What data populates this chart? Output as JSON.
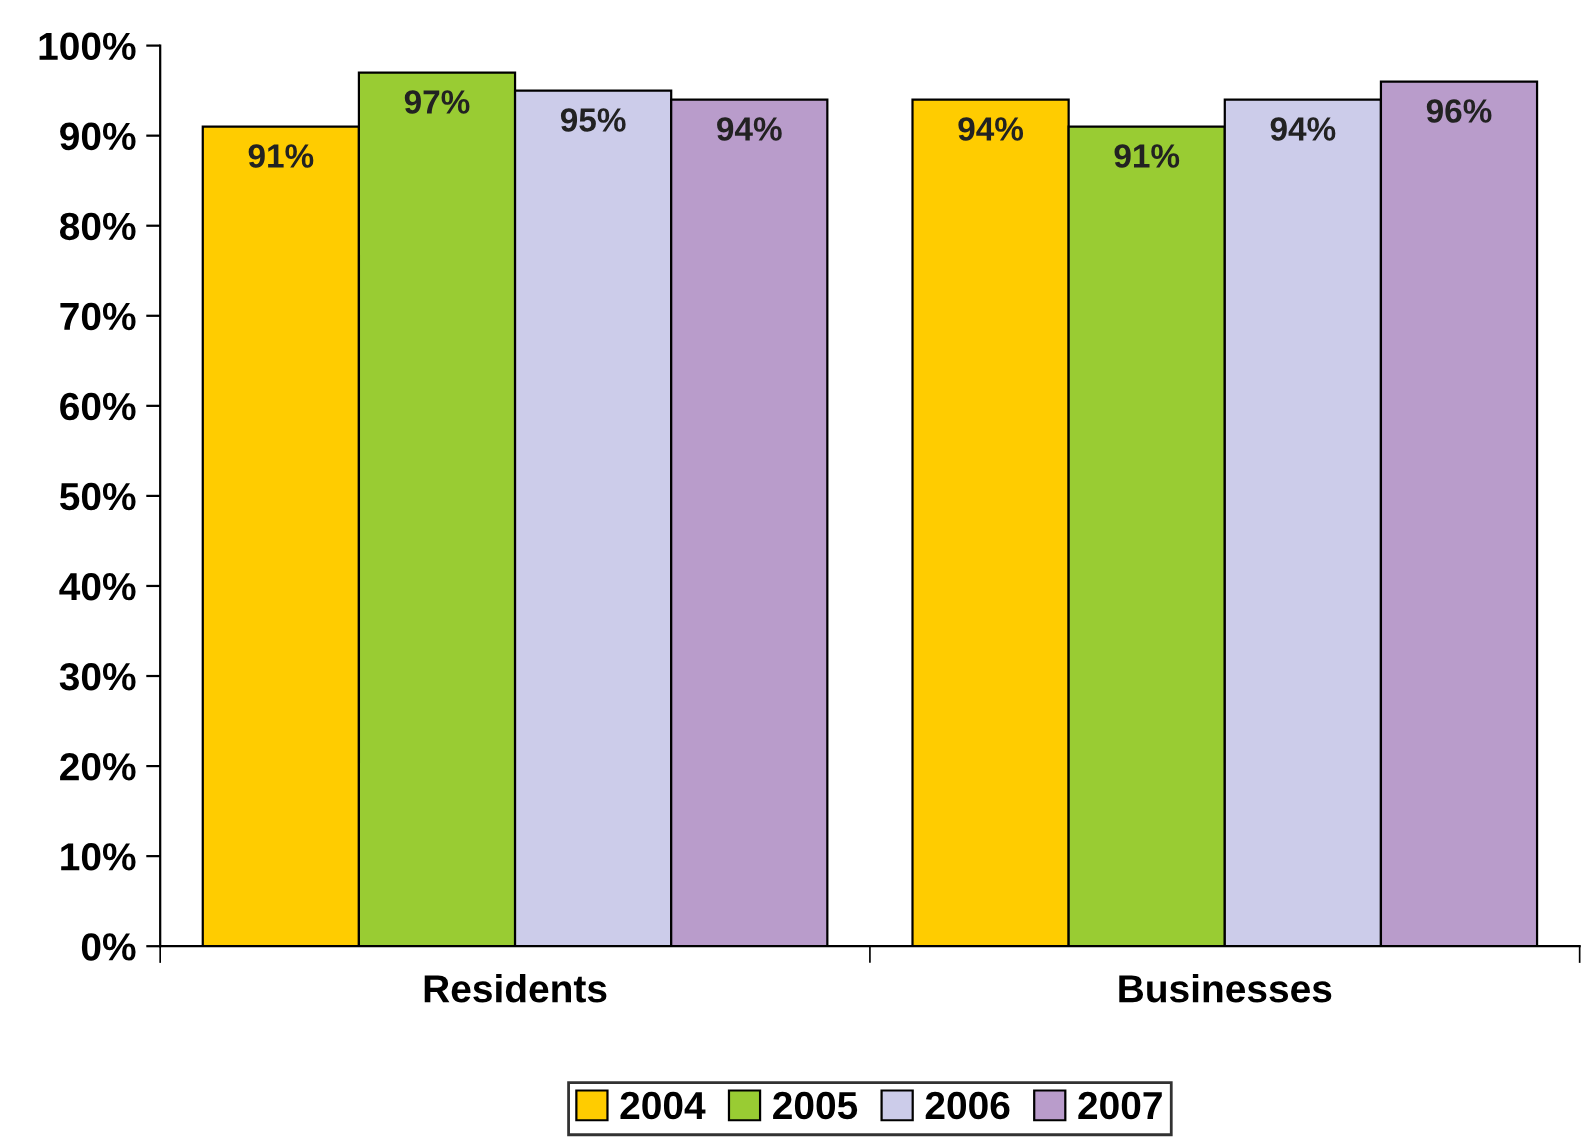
{
  "chart_data": {
    "type": "bar",
    "categories": [
      "Residents",
      "Businesses"
    ],
    "series": [
      {
        "name": "2004",
        "color": "#ffcc00",
        "values": [
          91,
          94
        ],
        "value_labels": [
          "91%",
          "94%"
        ]
      },
      {
        "name": "2005",
        "color": "#99cc33",
        "values": [
          97,
          91
        ],
        "value_labels": [
          "97%",
          "91%"
        ]
      },
      {
        "name": "2006",
        "color": "#ccccea",
        "values": [
          95,
          94
        ],
        "value_labels": [
          "95%",
          "94%"
        ]
      },
      {
        "name": "2007",
        "color": "#b99ccb",
        "values": [
          94,
          96
        ],
        "value_labels": [
          "94%",
          "96%"
        ]
      }
    ],
    "ylim": [
      0,
      100
    ],
    "yticks": [
      {
        "value": 0,
        "label": "0%"
      },
      {
        "value": 10,
        "label": "10%"
      },
      {
        "value": 20,
        "label": "20%"
      },
      {
        "value": 30,
        "label": "30%"
      },
      {
        "value": 40,
        "label": "40%"
      },
      {
        "value": 50,
        "label": "50%"
      },
      {
        "value": 60,
        "label": "60%"
      },
      {
        "value": 70,
        "label": "70%"
      },
      {
        "value": 80,
        "label": "80%"
      },
      {
        "value": 90,
        "label": "90%"
      },
      {
        "value": 100,
        "label": "100%"
      }
    ],
    "grid": false,
    "legend": "bottom"
  }
}
